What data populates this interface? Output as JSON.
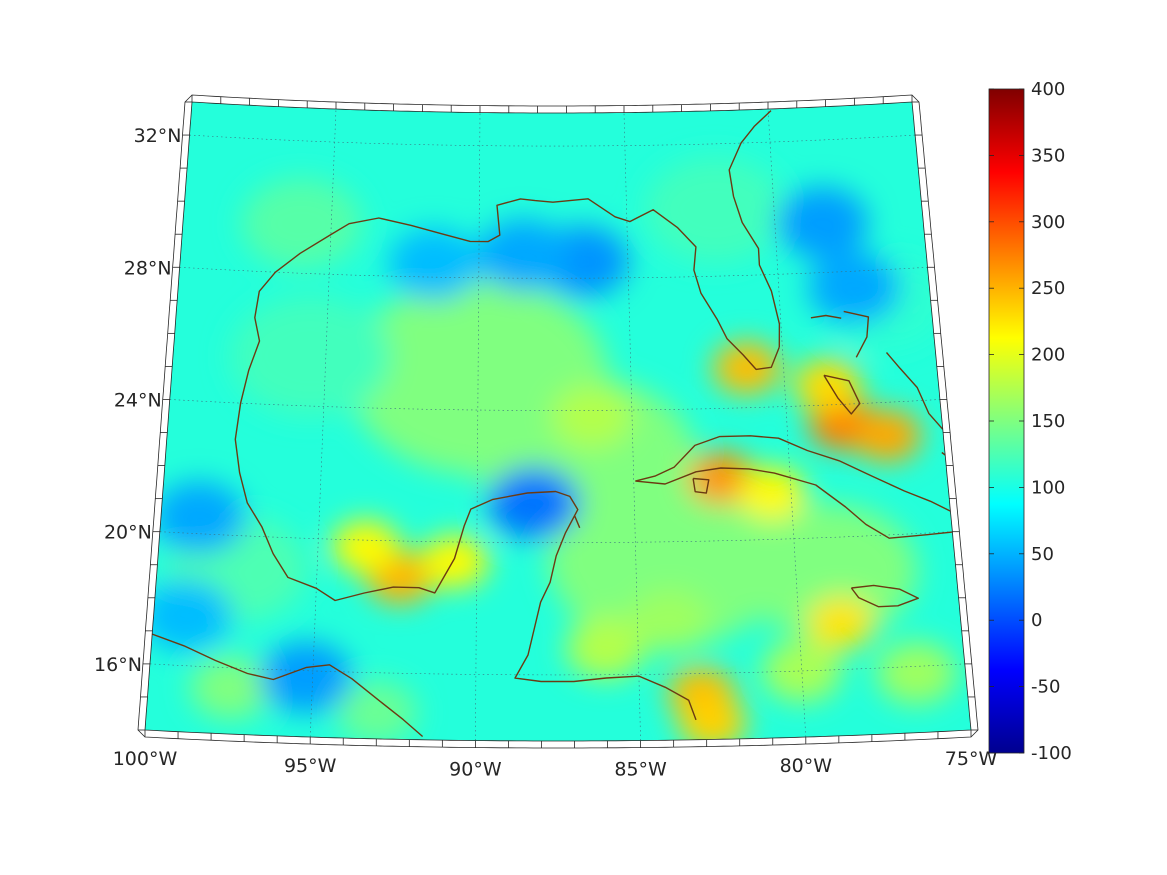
{
  "map": {
    "projection": "lambert-conformal-conic",
    "lon_range": [
      -100,
      -75
    ],
    "lat_range": [
      14,
      33
    ],
    "latitude_labels": [
      {
        "lat": 32,
        "text": "32°N"
      },
      {
        "lat": 28,
        "text": "28°N"
      },
      {
        "lat": 24,
        "text": "24°N"
      },
      {
        "lat": 20,
        "text": "20°N"
      },
      {
        "lat": 16,
        "text": "16°N"
      }
    ],
    "longitude_labels": [
      {
        "lon": -100,
        "text": "100°W"
      },
      {
        "lon": -95,
        "text": "95°W"
      },
      {
        "lon": -90,
        "text": "90°W"
      },
      {
        "lon": -85,
        "text": "85°W"
      },
      {
        "lon": -80,
        "text": "80°W"
      },
      {
        "lon": -75,
        "text": "75°W"
      }
    ],
    "coastline_color": "#6b3a12",
    "field_hotspots": [
      {
        "lon": -92.4,
        "lat": 18.9,
        "value": 250
      },
      {
        "lon": -93.5,
        "lat": 19.8,
        "value": 215
      },
      {
        "lon": -90.7,
        "lat": 19.4,
        "value": 215
      },
      {
        "lon": -78.2,
        "lat": 23.4,
        "value": 275
      },
      {
        "lon": -76.8,
        "lat": 23.0,
        "value": 255
      },
      {
        "lon": -78.6,
        "lat": 24.6,
        "value": 230
      },
      {
        "lon": -81.2,
        "lat": 25.2,
        "value": 245
      },
      {
        "lon": -82.2,
        "lat": 21.9,
        "value": 265
      },
      {
        "lon": -80.6,
        "lat": 21.4,
        "value": 215
      },
      {
        "lon": -83.1,
        "lat": 15.4,
        "value": 245
      },
      {
        "lon": -82.8,
        "lat": 14.5,
        "value": 235
      },
      {
        "lon": -78.7,
        "lat": 17.4,
        "value": 225
      },
      {
        "lon": -86.3,
        "lat": 23.8,
        "value": 175
      },
      {
        "lon": -86.0,
        "lat": 16.8,
        "value": 175
      },
      {
        "lon": -84.0,
        "lat": 17.6,
        "value": 165
      },
      {
        "lon": -80.0,
        "lat": 16.0,
        "value": 170
      },
      {
        "lon": -76.5,
        "lat": 15.8,
        "value": 165
      },
      {
        "lon": -97.5,
        "lat": 15.4,
        "value": 150
      },
      {
        "lon": -93.0,
        "lat": 14.8,
        "value": 140
      },
      {
        "lon": -88.2,
        "lat": 21.2,
        "value": 20
      },
      {
        "lon": -86.5,
        "lat": 28.5,
        "value": 35
      },
      {
        "lon": -88.5,
        "lat": 28.7,
        "value": 45
      },
      {
        "lon": -91.5,
        "lat": 28.4,
        "value": 55
      },
      {
        "lon": -78.4,
        "lat": 29.5,
        "value": 40
      },
      {
        "lon": -77.5,
        "lat": 27.5,
        "value": 45
      },
      {
        "lon": -98.8,
        "lat": 20.5,
        "value": 45
      },
      {
        "lon": -99.0,
        "lat": 17.5,
        "value": 55
      },
      {
        "lon": -95.2,
        "lat": 15.8,
        "value": 40
      }
    ]
  },
  "colorbar": {
    "colormap": "jet",
    "range": [
      -100,
      400
    ],
    "ticks": [
      "400",
      "350",
      "300",
      "250",
      "200",
      "150",
      "100",
      "50",
      "0",
      "-50",
      "-100"
    ]
  }
}
